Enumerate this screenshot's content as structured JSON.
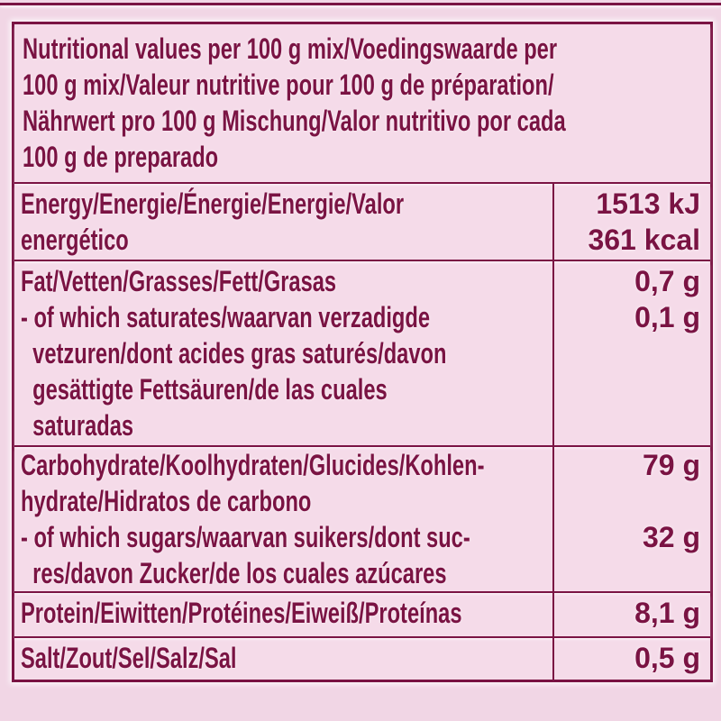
{
  "colors": {
    "background_pink": "#f1d6e5",
    "panel_pink": "#f5dbe9",
    "ink_maroon": "#7a1343"
  },
  "table": {
    "header": "Nutritional values per 100 g mix/Voedingswaarde per\n100 g mix/Valeur nutritive pour 100 g de préparation/\nNährwert pro 100 g Mischung/Valor nutritivo por cada\n100 g de preparado",
    "rows": [
      {
        "label": "Energy/Energie/Énergie/Energie/Valor\nenergético",
        "value": "1513 kJ\n361 kcal"
      },
      {
        "label": "Fat/Vetten/Grasses/Fett/Grasas\n- of which saturates/waarvan verzadigde\n  vetzuren/dont acides gras saturés/davon\n  gesättigte Fettsäuren/de las cuales\n  saturadas",
        "value": "0,7 g\n0,1 g"
      },
      {
        "label": "Carbohydrate/Koolhydraten/Glucides/Kohlen-\nhydrate/Hidratos de carbono\n- of which sugars/waarvan suikers/dont suc-\n  res/davon Zucker/de los cuales azúcares",
        "value": "79 g\n\n32 g"
      },
      {
        "label": "Protein/Eiwitten/Protéines/Eiweiß/Proteínas",
        "value": "8,1 g"
      },
      {
        "label": "Salt/Zout/Sel/Salz/Sal",
        "value": "0,5 g"
      }
    ]
  }
}
